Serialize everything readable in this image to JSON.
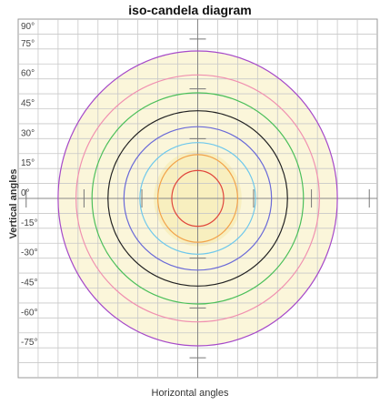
{
  "chart_data": {
    "type": "contour",
    "title": "iso-candela diagram",
    "xlabel": "Horizontal angles",
    "ylabel": "Vertical angles",
    "xlim": [
      -90,
      90
    ],
    "ylim": [
      -90,
      90
    ],
    "y_ticks": [
      {
        "value": 90,
        "label": "90°"
      },
      {
        "value": 75,
        "label": "75°"
      },
      {
        "value": 60,
        "label": "60°"
      },
      {
        "value": 45,
        "label": "45°"
      },
      {
        "value": 30,
        "label": "30°"
      },
      {
        "value": 15,
        "label": "15°"
      },
      {
        "value": 0,
        "label": "0°"
      },
      {
        "value": -15,
        "label": "-15°"
      },
      {
        "value": -30,
        "label": "-30°"
      },
      {
        "value": -45,
        "label": "-45°"
      },
      {
        "value": -60,
        "label": "-60°"
      },
      {
        "value": -75,
        "label": "-75°"
      }
    ],
    "grid": true,
    "fill_color": "#fbf6da",
    "contours": [
      {
        "color": "#a64ac9",
        "rx": 70,
        "ry": 74
      },
      {
        "color": "#f090b0",
        "rx": 61,
        "ry": 62
      },
      {
        "color": "#4bbf5a",
        "rx": 53,
        "ry": 53
      },
      {
        "color": "#222222",
        "rx": 45,
        "ry": 44
      },
      {
        "color": "#6a6ad8",
        "rx": 37,
        "ry": 36
      },
      {
        "color": "#6ec8ec",
        "rx": 29,
        "ry": 28
      },
      {
        "color": "#f2a34a",
        "rx": 20,
        "ry": 22
      },
      {
        "color": "#e0463c",
        "rx": 13,
        "ry": 14
      }
    ]
  }
}
